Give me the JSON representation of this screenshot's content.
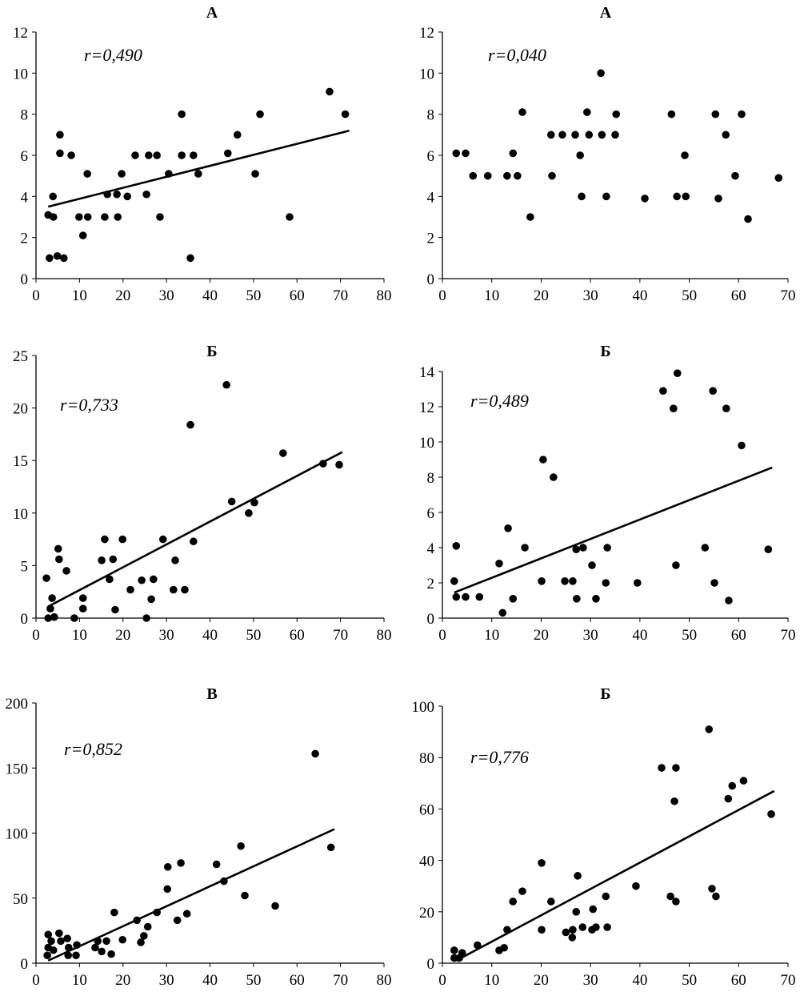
{
  "chart_data": [
    {
      "type": "scatter",
      "title": "А",
      "annotation": "r=0,490",
      "xlim": [
        0,
        80
      ],
      "ylim": [
        0,
        12
      ],
      "xticks": [
        0,
        10,
        20,
        30,
        40,
        50,
        60,
        70,
        80
      ],
      "yticks": [
        0,
        2,
        4,
        6,
        8,
        10,
        12
      ],
      "points": [
        [
          2.8,
          3.1
        ],
        [
          3.1,
          1.0
        ],
        [
          3.9,
          4.0
        ],
        [
          4.0,
          3.0
        ],
        [
          4.9,
          1.1
        ],
        [
          5.5,
          7.0
        ],
        [
          5.5,
          6.1
        ],
        [
          6.4,
          1.0
        ],
        [
          8.1,
          6.0
        ],
        [
          9.9,
          3.0
        ],
        [
          10.8,
          2.1
        ],
        [
          11.8,
          5.1
        ],
        [
          11.9,
          3.0
        ],
        [
          15.8,
          3.0
        ],
        [
          16.4,
          4.1
        ],
        [
          18.6,
          4.1
        ],
        [
          18.8,
          3.0
        ],
        [
          19.7,
          5.1
        ],
        [
          21,
          4.0
        ],
        [
          22.8,
          6.0
        ],
        [
          25.4,
          4.1
        ],
        [
          25.9,
          6.0
        ],
        [
          27.8,
          6.0
        ],
        [
          28.5,
          3.0
        ],
        [
          30.5,
          5.1
        ],
        [
          33.5,
          8.0
        ],
        [
          33.5,
          6.0
        ],
        [
          35.5,
          1.0
        ],
        [
          36.2,
          6.0
        ],
        [
          37.3,
          5.1
        ],
        [
          44.1,
          6.1
        ],
        [
          46.3,
          7.0
        ],
        [
          51.5,
          8.0
        ],
        [
          50.4,
          5.1
        ],
        [
          58.3,
          3.0
        ],
        [
          67.5,
          9.1
        ],
        [
          71.1,
          8.0
        ]
      ],
      "trendline": [
        [
          2.8,
          3.5
        ],
        [
          72,
          7.2
        ]
      ]
    },
    {
      "type": "scatter",
      "title": "А",
      "annotation": "r=0,040",
      "xlim": [
        0,
        70
      ],
      "ylim": [
        0,
        12
      ],
      "xticks": [
        0,
        10,
        20,
        30,
        40,
        50,
        60,
        70
      ],
      "yticks": [
        0,
        2,
        4,
        6,
        8,
        10,
        12
      ],
      "points": [
        [
          2.8,
          6.1
        ],
        [
          4.7,
          6.1
        ],
        [
          6.2,
          5.0
        ],
        [
          9.2,
          5.0
        ],
        [
          13.1,
          5.0
        ],
        [
          14.3,
          6.1
        ],
        [
          15.2,
          5.0
        ],
        [
          16.2,
          8.1
        ],
        [
          17.8,
          3.0
        ],
        [
          22,
          7.0
        ],
        [
          22.2,
          5.0
        ],
        [
          24.3,
          7.0
        ],
        [
          26.9,
          7.0
        ],
        [
          27.9,
          6.0
        ],
        [
          28.2,
          4.0
        ],
        [
          29.3,
          8.1
        ],
        [
          29.7,
          7.0
        ],
        [
          32.1,
          10.0
        ],
        [
          32.3,
          7.0
        ],
        [
          33.2,
          4.0
        ],
        [
          35.0,
          7.0
        ],
        [
          35.2,
          8.0
        ],
        [
          41.0,
          3.9
        ],
        [
          46.4,
          8.0
        ],
        [
          47.5,
          4.0
        ],
        [
          49.1,
          6.0
        ],
        [
          49.3,
          4.0
        ],
        [
          55.3,
          8.0
        ],
        [
          55.9,
          3.9
        ],
        [
          57.4,
          7.0
        ],
        [
          59.3,
          5.0
        ],
        [
          60.6,
          8.0
        ],
        [
          61.9,
          2.9
        ],
        [
          68.1,
          4.9
        ]
      ],
      "trendline": null
    },
    {
      "type": "scatter",
      "title": "Б",
      "annotation": "r=0,733",
      "xlim": [
        0,
        80
      ],
      "ylim": [
        0,
        25
      ],
      "xticks": [
        0,
        10,
        20,
        30,
        40,
        50,
        60,
        70,
        80
      ],
      "yticks": [
        0,
        5,
        10,
        15,
        20,
        25
      ],
      "points": [
        [
          2.4,
          3.8
        ],
        [
          2.8,
          0
        ],
        [
          3.3,
          0.9
        ],
        [
          3.7,
          1.9
        ],
        [
          4.2,
          0.1
        ],
        [
          5.1,
          6.6
        ],
        [
          5.3,
          5.6
        ],
        [
          7.0,
          4.5
        ],
        [
          8.8,
          0
        ],
        [
          10.8,
          1.9
        ],
        [
          10.8,
          0.9
        ],
        [
          15.1,
          5.5
        ],
        [
          15.8,
          7.5
        ],
        [
          16.9,
          3.7
        ],
        [
          17.7,
          5.6
        ],
        [
          18.2,
          0.8
        ],
        [
          19.9,
          7.5
        ],
        [
          21.7,
          2.7
        ],
        [
          24.3,
          3.6
        ],
        [
          25.4,
          0
        ],
        [
          26.5,
          1.8
        ],
        [
          27,
          3.7
        ],
        [
          29.2,
          7.5
        ],
        [
          31.6,
          2.7
        ],
        [
          32,
          5.5
        ],
        [
          34.2,
          2.7
        ],
        [
          35.5,
          18.4
        ],
        [
          36.2,
          7.3
        ],
        [
          43.8,
          22.2
        ],
        [
          45,
          11.1
        ],
        [
          48.9,
          10
        ],
        [
          50.2,
          11
        ],
        [
          56.8,
          15.7
        ],
        [
          66,
          14.7
        ],
        [
          69.7,
          14.6
        ]
      ],
      "trendline": [
        [
          2.8,
          1.1
        ],
        [
          70.4,
          15.8
        ]
      ]
    },
    {
      "type": "scatter",
      "title": "Б",
      "annotation": "r=0,489",
      "xlim": [
        0,
        70
      ],
      "ylim": [
        0,
        14
      ],
      "xticks": [
        0,
        10,
        20,
        30,
        40,
        50,
        60,
        70
      ],
      "yticks": [
        0,
        2,
        4,
        6,
        8,
        10,
        12,
        14
      ],
      "points": [
        [
          2.8,
          4.1
        ],
        [
          2.4,
          2.1
        ],
        [
          2.8,
          1.2
        ],
        [
          4.7,
          1.2
        ],
        [
          7.5,
          1.2
        ],
        [
          11.5,
          3.1
        ],
        [
          12.2,
          0.3
        ],
        [
          13.3,
          5.1
        ],
        [
          14.3,
          1.1
        ],
        [
          16.7,
          4.0
        ],
        [
          20.4,
          9.0
        ],
        [
          20.1,
          2.1
        ],
        [
          22.5,
          8.0
        ],
        [
          24.8,
          2.1
        ],
        [
          26.4,
          2.1
        ],
        [
          27.1,
          3.9
        ],
        [
          27.2,
          1.1
        ],
        [
          28.5,
          4.0
        ],
        [
          30.3,
          3.0
        ],
        [
          31.1,
          1.1
        ],
        [
          33.1,
          2.0
        ],
        [
          33.4,
          4.0
        ],
        [
          39.5,
          2.0
        ],
        [
          44.7,
          12.9
        ],
        [
          46.8,
          11.9
        ],
        [
          47.3,
          3.0
        ],
        [
          47.6,
          13.9
        ],
        [
          53.2,
          4.0
        ],
        [
          54.8,
          12.9
        ],
        [
          55.1,
          2.0
        ],
        [
          57.5,
          11.9
        ],
        [
          58,
          1.0
        ],
        [
          60.6,
          9.8
        ],
        [
          66,
          3.9
        ]
      ],
      "trendline": [
        [
          2.4,
          1.45
        ],
        [
          66.8,
          8.55
        ]
      ]
    },
    {
      "type": "scatter",
      "title": "В",
      "annotation": "r=0,852",
      "xlim": [
        0,
        80
      ],
      "ylim": [
        0,
        200
      ],
      "xticks": [
        0,
        10,
        20,
        30,
        40,
        50,
        60,
        70,
        80
      ],
      "yticks": [
        0,
        50,
        100,
        150,
        200
      ],
      "points": [
        [
          2.6,
          6
        ],
        [
          2.8,
          22
        ],
        [
          2.8,
          12
        ],
        [
          3.5,
          17
        ],
        [
          4,
          10
        ],
        [
          5.3,
          23
        ],
        [
          5.7,
          17
        ],
        [
          7.2,
          19
        ],
        [
          7.5,
          12
        ],
        [
          7.4,
          6
        ],
        [
          9.2,
          6
        ],
        [
          9.4,
          14
        ],
        [
          13.6,
          12
        ],
        [
          14.2,
          17
        ],
        [
          15.1,
          9
        ],
        [
          16.2,
          17
        ],
        [
          17.3,
          7
        ],
        [
          18,
          39
        ],
        [
          19.9,
          18
        ],
        [
          23.2,
          33
        ],
        [
          24.1,
          16
        ],
        [
          24.8,
          21
        ],
        [
          25.7,
          28
        ],
        [
          27.8,
          39
        ],
        [
          30.2,
          57
        ],
        [
          30.3,
          74
        ],
        [
          32.5,
          33
        ],
        [
          33.3,
          77
        ],
        [
          34.7,
          38
        ],
        [
          41.5,
          76
        ],
        [
          43.2,
          63
        ],
        [
          47.1,
          90
        ],
        [
          48,
          52
        ],
        [
          55,
          44
        ],
        [
          64.2,
          161
        ],
        [
          67.8,
          89
        ]
      ],
      "trendline": [
        [
          2.8,
          2
        ],
        [
          68.6,
          103
        ]
      ]
    },
    {
      "type": "scatter",
      "title": "Б",
      "annotation": "r=0,776",
      "xlim": [
        0,
        70
      ],
      "ylim": [
        0,
        100
      ],
      "xticks": [
        0,
        10,
        20,
        30,
        40,
        50,
        60,
        70
      ],
      "yticks": [
        0,
        20,
        40,
        60,
        80,
        100
      ],
      "points": [
        [
          2.4,
          5
        ],
        [
          2.4,
          2
        ],
        [
          3.4,
          2
        ],
        [
          4,
          4
        ],
        [
          7.1,
          7
        ],
        [
          11.5,
          5
        ],
        [
          12.5,
          6
        ],
        [
          13.1,
          13
        ],
        [
          14.3,
          24
        ],
        [
          16.2,
          28
        ],
        [
          20.1,
          13
        ],
        [
          20.1,
          39
        ],
        [
          22,
          24
        ],
        [
          25,
          12
        ],
        [
          26.3,
          10
        ],
        [
          26.4,
          13
        ],
        [
          27.1,
          20
        ],
        [
          27.4,
          34
        ],
        [
          28.4,
          14
        ],
        [
          30.3,
          13
        ],
        [
          30.5,
          21
        ],
        [
          31.1,
          14
        ],
        [
          33.1,
          26
        ],
        [
          33.4,
          14
        ],
        [
          39.2,
          30
        ],
        [
          44.4,
          76
        ],
        [
          46.2,
          26
        ],
        [
          47,
          63
        ],
        [
          47.3,
          76
        ],
        [
          47.3,
          24
        ],
        [
          54,
          91
        ],
        [
          54.6,
          29
        ],
        [
          55.4,
          26
        ],
        [
          57.9,
          64
        ],
        [
          58.7,
          69
        ],
        [
          61,
          71
        ],
        [
          66.6,
          58
        ]
      ],
      "trendline": [
        [
          2.8,
          1
        ],
        [
          67.2,
          67
        ]
      ]
    }
  ]
}
